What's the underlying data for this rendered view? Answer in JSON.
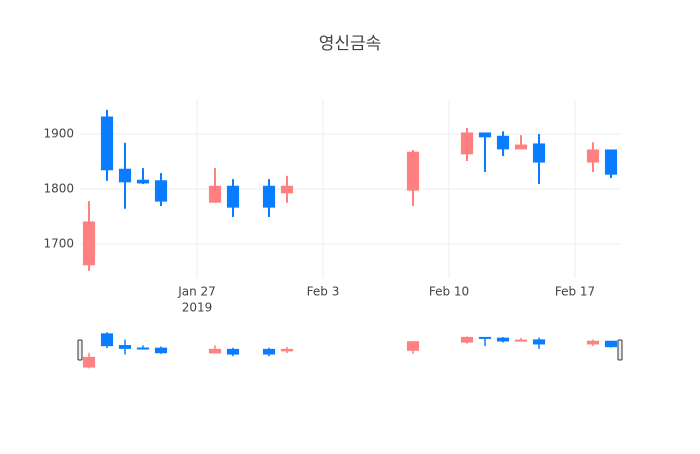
{
  "chart_data": {
    "type": "candlestick",
    "title": "영신금속",
    "x": [
      "2019-01-21",
      "2019-01-22",
      "2019-01-23",
      "2019-01-24",
      "2019-01-25",
      "2019-01-28",
      "2019-01-29",
      "2019-01-31",
      "2019-02-01",
      "2019-02-08",
      "2019-02-11",
      "2019-02-12",
      "2019-02-13",
      "2019-02-14",
      "2019-02-15",
      "2019-02-18",
      "2019-02-19"
    ],
    "open": [
      1662,
      1931,
      1836,
      1816,
      1815,
      1776,
      1805,
      1805,
      1793,
      1798,
      1864,
      1902,
      1896,
      1873,
      1882,
      1849,
      1871
    ],
    "high": [
      1778,
      1944,
      1884,
      1838,
      1829,
      1838,
      1818,
      1818,
      1824,
      1871,
      1911,
      1902,
      1905,
      1898,
      1900,
      1885,
      1871
    ],
    "low": [
      1651,
      1815,
      1764,
      1809,
      1769,
      1775,
      1749,
      1749,
      1775,
      1769,
      1851,
      1831,
      1860,
      1873,
      1809,
      1831,
      1820
    ],
    "close": [
      1740,
      1835,
      1813,
      1811,
      1778,
      1805,
      1767,
      1767,
      1805,
      1867,
      1902,
      1895,
      1873,
      1880,
      1849,
      1871,
      1827
    ],
    "increasing_color": "#ff8080",
    "decreasing_color": "#0a7cff",
    "xlim": [
      "2019-01-20T12:00Z",
      "2019-02-19T12:00Z"
    ],
    "xticks": [
      {
        "value": "2019-01-27",
        "label": "Jan 27"
      },
      {
        "value": "2019-02-03",
        "label": "Feb 3"
      },
      {
        "value": "2019-02-10",
        "label": "Feb 10"
      },
      {
        "value": "2019-02-17",
        "label": "Feb 17"
      }
    ],
    "x_year": "2019",
    "ylim": [
      1638,
      1962
    ],
    "yticks": [
      1700,
      1800,
      1900
    ],
    "grid": true,
    "range_slider": true
  }
}
